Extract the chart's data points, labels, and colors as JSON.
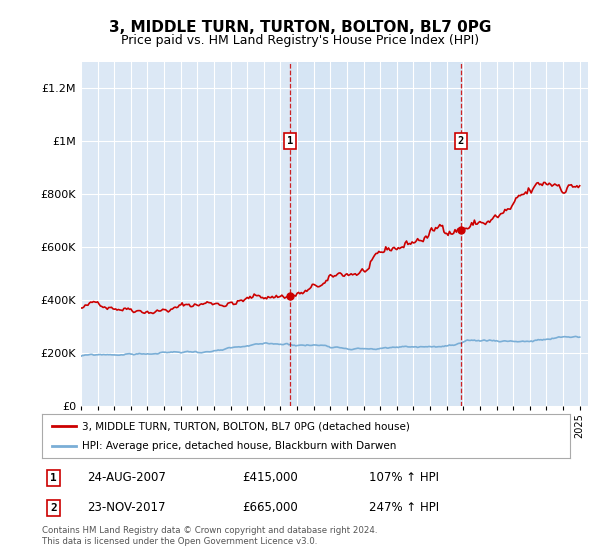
{
  "title": "3, MIDDLE TURN, TURTON, BOLTON, BL7 0PG",
  "subtitle": "Price paid vs. HM Land Registry's House Price Index (HPI)",
  "title_fontsize": 11,
  "subtitle_fontsize": 9,
  "ylim": [
    0,
    1300000
  ],
  "yticks": [
    0,
    200000,
    400000,
    600000,
    800000,
    1000000,
    1200000
  ],
  "ytick_labels": [
    "£0",
    "£200K",
    "£400K",
    "£600K",
    "£800K",
    "£1M",
    "£1.2M"
  ],
  "background_color": "#ffffff",
  "plot_bg_color": "#dce8f5",
  "grid_color": "#ffffff",
  "red_line_color": "#cc0000",
  "blue_line_color": "#7aaed6",
  "marker1_date_idx": 151,
  "marker1_value": 415000,
  "marker1_label": "1",
  "marker1_date_str": "24-AUG-2007",
  "marker1_price_str": "£415,000",
  "marker1_hpi_str": "107% ↑ HPI",
  "marker2_date_idx": 274,
  "marker2_value": 665000,
  "marker2_label": "2",
  "marker2_date_str": "23-NOV-2017",
  "marker2_price_str": "£665,000",
  "marker2_hpi_str": "247% ↑ HPI",
  "legend_line1": "3, MIDDLE TURN, TURTON, BOLTON, BL7 0PG (detached house)",
  "legend_line2": "HPI: Average price, detached house, Blackburn with Darwen",
  "footnote": "Contains HM Land Registry data © Crown copyright and database right 2024.\nThis data is licensed under the Open Government Licence v3.0.",
  "xstart_year": 1995,
  "xend_year": 2025
}
